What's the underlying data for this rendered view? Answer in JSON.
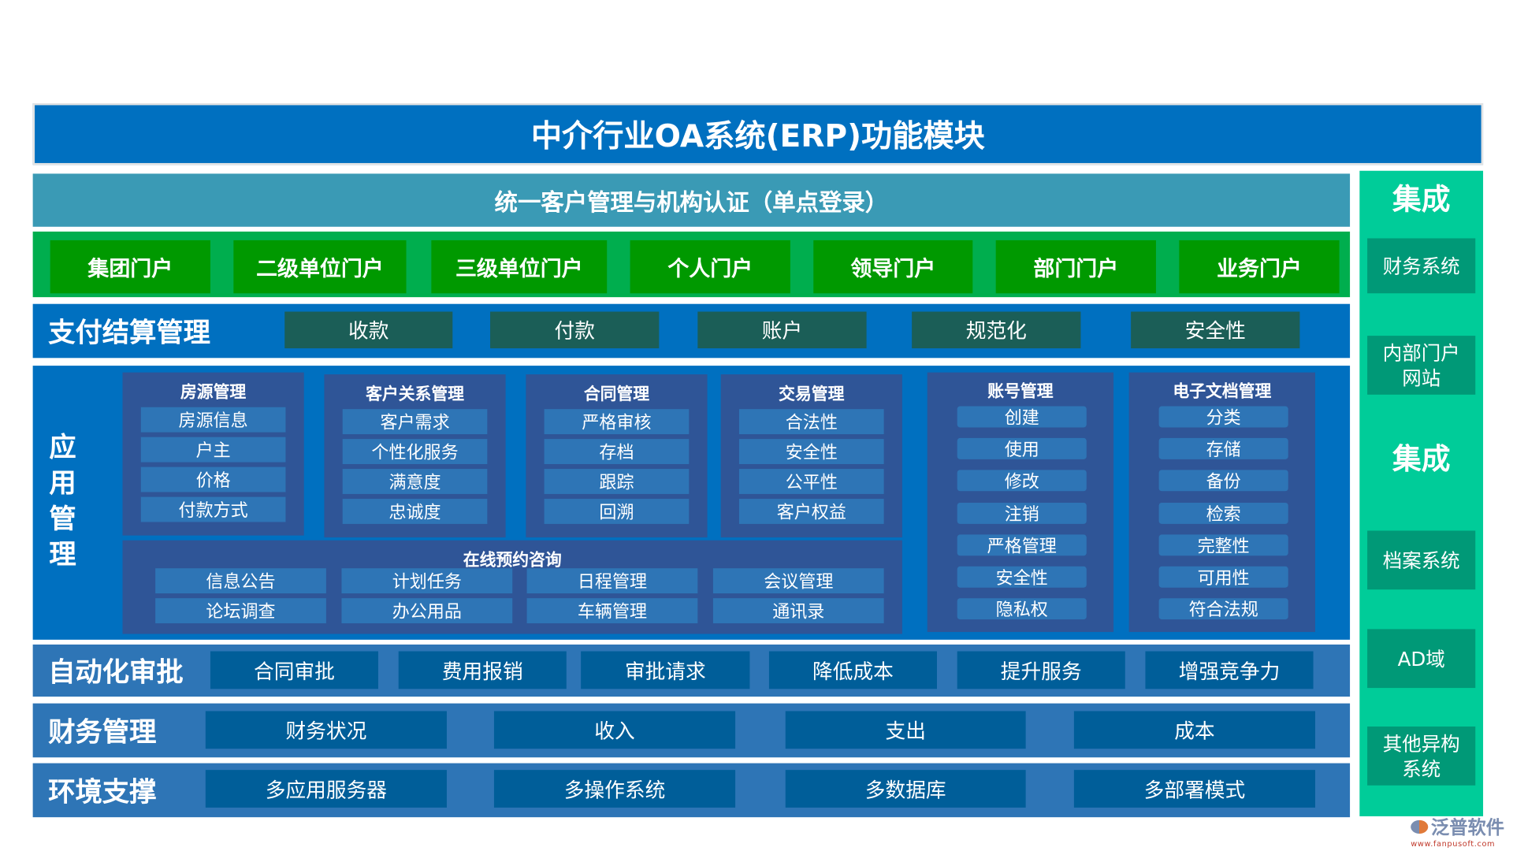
{
  "title": "中介行业OA系统(ERP)功能模块",
  "sso": "统一客户管理与机构认证（单点登录）",
  "portals": [
    "集团门户",
    "二级单位门户",
    "三级单位门户",
    "个人门户",
    "领导门户",
    "部门门户",
    "业务门户"
  ],
  "payment": {
    "label": "支付结算管理",
    "items": [
      "收款",
      "付款",
      "账户",
      "规范化",
      "安全性"
    ]
  },
  "app": {
    "label": "应用管理",
    "panels": [
      {
        "title": "房源管理",
        "items": [
          "房源信息",
          "户主",
          "价格",
          "付款方式"
        ]
      },
      {
        "title": "客户关系管理",
        "items": [
          "客户需求",
          "个性化服务",
          "满意度",
          "忠诚度"
        ]
      },
      {
        "title": "合同管理",
        "items": [
          "严格审核",
          "存档",
          "跟踪",
          "回溯"
        ]
      },
      {
        "title": "交易管理",
        "items": [
          "合法性",
          "安全性",
          "公平性",
          "客户权益"
        ]
      }
    ],
    "online": {
      "title": "在线预约咨询",
      "items": [
        "信息公告",
        "计划任务",
        "日程管理",
        "会议管理",
        "论坛调查",
        "办公用品",
        "车辆管理",
        "通讯录"
      ]
    },
    "account": {
      "title": "账号管理",
      "items": [
        "创建",
        "使用",
        "修改",
        "注销",
        "严格管理",
        "安全性",
        "隐私权"
      ]
    },
    "docs": {
      "title": "电子文档管理",
      "items": [
        "分类",
        "存储",
        "备份",
        "检索",
        "完整性",
        "可用性",
        "符合法规"
      ]
    }
  },
  "approval": {
    "label": "自动化审批",
    "items": [
      "合同审批",
      "费用报销",
      "审批请求",
      "降低成本",
      "提升服务",
      "增强竞争力"
    ]
  },
  "finance": {
    "label": "财务管理",
    "items": [
      "财务状况",
      "收入",
      "支出",
      "成本"
    ]
  },
  "env": {
    "label": "环境支撑",
    "items": [
      "多应用服务器",
      "多操作系统",
      "多数据库",
      "多部署模式"
    ]
  },
  "integration": {
    "heading1": "集成",
    "heading2": "集成",
    "systems": [
      "财务系统",
      "内部门户网站",
      "档案系统",
      "AD域",
      "其他异构系统"
    ]
  },
  "logo": {
    "name": "泛普软件",
    "url": "www.fanpusoft.com"
  },
  "colors": {
    "title": "#0070C0",
    "sso": "#3A9AB5",
    "portal_bg": "#00AE4E",
    "portal_btn": "#009900",
    "panel": "#2F5597",
    "item": "#2E75B6",
    "integration": "#00CC99"
  }
}
